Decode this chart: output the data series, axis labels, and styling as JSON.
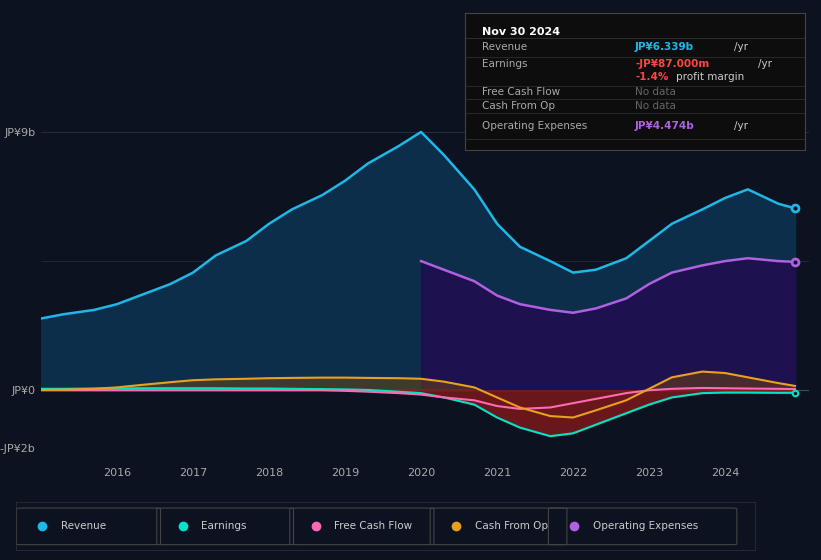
{
  "bg_color": "#0c1220",
  "chart_bg": "#0c1220",
  "years": [
    2015.0,
    2015.3,
    2015.7,
    2016.0,
    2016.3,
    2016.7,
    2017.0,
    2017.3,
    2017.7,
    2018.0,
    2018.3,
    2018.7,
    2019.0,
    2019.3,
    2019.7,
    2020.0,
    2020.3,
    2020.7,
    2021.0,
    2021.3,
    2021.7,
    2022.0,
    2022.3,
    2022.7,
    2023.0,
    2023.3,
    2023.7,
    2024.0,
    2024.3,
    2024.7,
    2024.92
  ],
  "revenue": [
    2.5,
    2.65,
    2.8,
    3.0,
    3.3,
    3.7,
    4.1,
    4.7,
    5.2,
    5.8,
    6.3,
    6.8,
    7.3,
    7.9,
    8.5,
    9.0,
    8.2,
    7.0,
    5.8,
    5.0,
    4.5,
    4.1,
    4.2,
    4.6,
    5.2,
    5.8,
    6.3,
    6.7,
    7.0,
    6.5,
    6.339
  ],
  "op_expenses": [
    0.0,
    0.0,
    0.0,
    0.0,
    0.0,
    0.0,
    0.0,
    0.0,
    0.0,
    0.0,
    0.0,
    0.0,
    0.0,
    0.0,
    0.0,
    4.5,
    4.2,
    3.8,
    3.3,
    3.0,
    2.8,
    2.7,
    2.85,
    3.2,
    3.7,
    4.1,
    4.35,
    4.5,
    4.6,
    4.5,
    4.474
  ],
  "earnings": [
    0.05,
    0.05,
    0.06,
    0.06,
    0.07,
    0.07,
    0.07,
    0.07,
    0.06,
    0.06,
    0.05,
    0.04,
    0.03,
    0.01,
    -0.05,
    -0.1,
    -0.25,
    -0.5,
    -0.95,
    -1.3,
    -1.6,
    -1.5,
    -1.2,
    -0.8,
    -0.5,
    -0.25,
    -0.1,
    -0.08,
    -0.08,
    -0.09,
    -0.087
  ],
  "free_cash_flow": [
    0.0,
    0.0,
    0.0,
    0.0,
    0.0,
    0.0,
    0.0,
    0.0,
    0.0,
    0.0,
    0.0,
    0.0,
    -0.02,
    -0.05,
    -0.1,
    -0.15,
    -0.25,
    -0.35,
    -0.55,
    -0.65,
    -0.6,
    -0.45,
    -0.3,
    -0.1,
    0.0,
    0.05,
    0.08,
    0.07,
    0.06,
    0.05,
    0.04
  ],
  "cash_from_op": [
    0.01,
    0.02,
    0.05,
    0.1,
    0.18,
    0.28,
    0.35,
    0.38,
    0.4,
    0.42,
    0.43,
    0.44,
    0.44,
    0.43,
    0.42,
    0.4,
    0.3,
    0.1,
    -0.25,
    -0.6,
    -0.9,
    -0.95,
    -0.7,
    -0.35,
    0.05,
    0.45,
    0.65,
    0.6,
    0.45,
    0.25,
    0.15
  ],
  "ylim": [
    -2.5,
    9.5
  ],
  "xlim": [
    2015.0,
    2025.1
  ],
  "xticks": [
    2016,
    2017,
    2018,
    2019,
    2020,
    2021,
    2022,
    2023,
    2024
  ],
  "yticks": [
    -2,
    0,
    9
  ],
  "ytick_labels": [
    "-JP¥2b",
    "JP¥0",
    "JP¥9b"
  ],
  "revenue_color": "#1eb8e8",
  "revenue_fill": "#0a2a40",
  "earnings_color": "#00e5c8",
  "fcf_color": "#ff69b4",
  "cop_color": "#e8a020",
  "op_exp_color": "#b060e0",
  "op_exp_fill": "#2a1550",
  "legend_items": [
    {
      "label": "Revenue",
      "color": "#1eb8e8"
    },
    {
      "label": "Earnings",
      "color": "#00e5c8"
    },
    {
      "label": "Free Cash Flow",
      "color": "#ff69b4"
    },
    {
      "label": "Cash From Op",
      "color": "#e8a020"
    },
    {
      "label": "Operating Expenses",
      "color": "#b060e0"
    }
  ]
}
